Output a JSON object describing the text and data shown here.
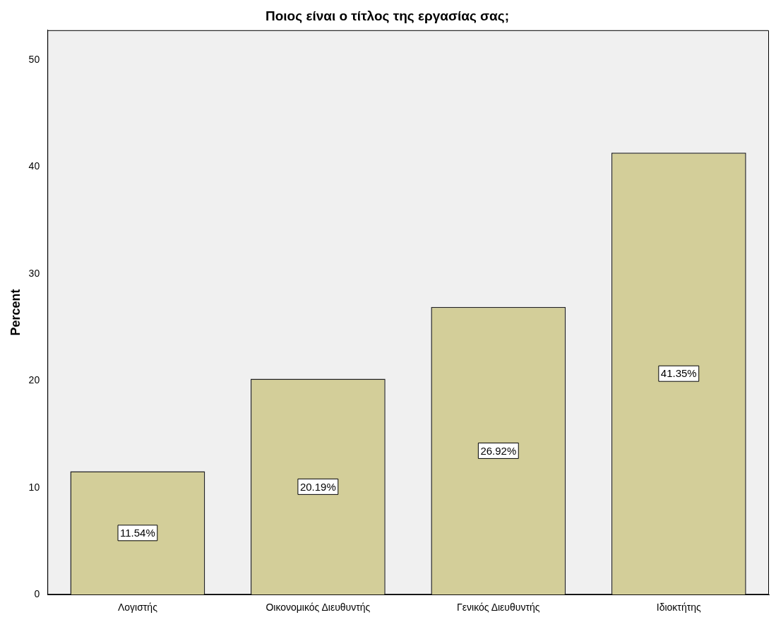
{
  "chart_data": {
    "type": "bar",
    "title": "Ποιος είναι ο τίτλος της εργασίας σας;",
    "ylabel": "Percent",
    "categories": [
      "Λογιστής",
      "Οικονομικός Διευθυντής",
      "Γενικός Διευθυντής",
      "Ιδιοκτήτης"
    ],
    "values": [
      11.54,
      20.19,
      26.92,
      41.35
    ],
    "value_labels": [
      "11.54%",
      "20.19%",
      "26.92%",
      "41.35%"
    ],
    "color": "#d3ce99",
    "ylim": [
      0,
      52.8
    ],
    "yticks": [
      0,
      10,
      20,
      30,
      40,
      50
    ],
    "grid": false,
    "legend": false
  }
}
